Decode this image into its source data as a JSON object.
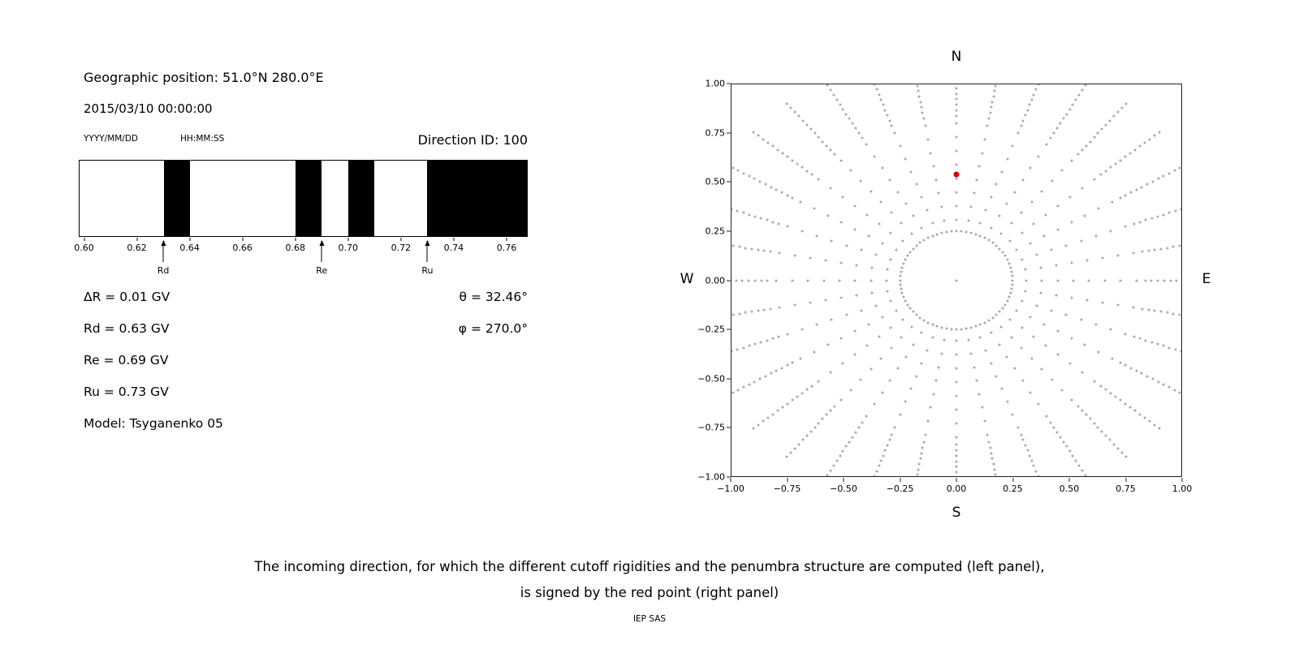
{
  "left_panel": {
    "geo_position": "Geographic position: 51.0°N 280.0°E",
    "datetime": "2015/03/10 00:00:00",
    "date_format_label": "YYYY/MM/DD",
    "time_format_label": "HH:MM:SS",
    "direction_id": "Direction ID: 100",
    "delta_r": "ΔR = 0.01 GV",
    "rd": "Rd = 0.63 GV",
    "re": "Re = 0.69 GV",
    "ru": "Ru = 0.73 GV",
    "model": "Model: Tsyganenko 05",
    "theta": "θ = 32.46°",
    "phi": "φ = 270.0°"
  },
  "caption": {
    "line1": "The incoming direction, for which the different cutoff rigidities and the penumbra structure are computed (left panel),",
    "line2": "is signed by the red point (right panel)",
    "credit": "IEP SAS"
  },
  "chart_data": [
    {
      "type": "bar",
      "name": "penumbra-structure",
      "description": "Cosmic-ray penumbra: black bands are forbidden rigidity intervals (GV)",
      "x_range": [
        0.598,
        0.768
      ],
      "x_tick_labels": [
        "0.60",
        "0.62",
        "0.64",
        "0.66",
        "0.68",
        "0.70",
        "0.72",
        "0.74",
        "0.76"
      ],
      "x_tick_values": [
        0.6,
        0.62,
        0.64,
        0.66,
        0.68,
        0.7,
        0.72,
        0.74,
        0.76
      ],
      "forbidden_bands": [
        [
          0.63,
          0.64
        ],
        [
          0.68,
          0.69
        ],
        [
          0.7,
          0.71
        ],
        [
          0.73,
          0.768
        ]
      ],
      "band_color": "#000000",
      "background_color": "#ffffff",
      "markers": [
        {
          "label": "Rd",
          "value": 0.63
        },
        {
          "label": "Re",
          "value": 0.69
        },
        {
          "label": "Ru",
          "value": 0.73
        }
      ]
    },
    {
      "type": "scatter",
      "name": "incoming-direction-map",
      "xlim": [
        -1,
        1
      ],
      "ylim": [
        -1,
        1
      ],
      "x_tick_labels": [
        "−1.00",
        "−0.75",
        "−0.50",
        "−0.25",
        "0.00",
        "0.25",
        "0.50",
        "0.75",
        "1.00"
      ],
      "x_tick_values": [
        -1,
        -0.75,
        -0.5,
        -0.25,
        0,
        0.25,
        0.5,
        0.75,
        1
      ],
      "y_tick_labels": [
        "1.00",
        "0.75",
        "0.50",
        "0.25",
        "0.00",
        "−0.25",
        "−0.50",
        "−0.75",
        "−1.00"
      ],
      "y_tick_values": [
        1,
        0.75,
        0.5,
        0.25,
        0,
        -0.25,
        -0.5,
        -0.75,
        -1
      ],
      "compass": {
        "north": "N",
        "south": "S",
        "east": "E",
        "west": "W"
      },
      "red_point": {
        "x": 0.0,
        "y": 0.54,
        "color": "#dd0000"
      },
      "dot_color": "#9a9a9a",
      "inner_circle": {
        "radius": 0.25,
        "points": 72
      },
      "center_dot": true,
      "spokes": {
        "count": 36,
        "start_angle_deg": 0,
        "step_deg": 10,
        "inner_radii": [
          0.31,
          0.38,
          0.45,
          0.52,
          0.59,
          0.66,
          0.73,
          0.8
        ],
        "outer_start": 0.84,
        "outer_end": 1.18,
        "outer_step": 0.028
      }
    }
  ]
}
